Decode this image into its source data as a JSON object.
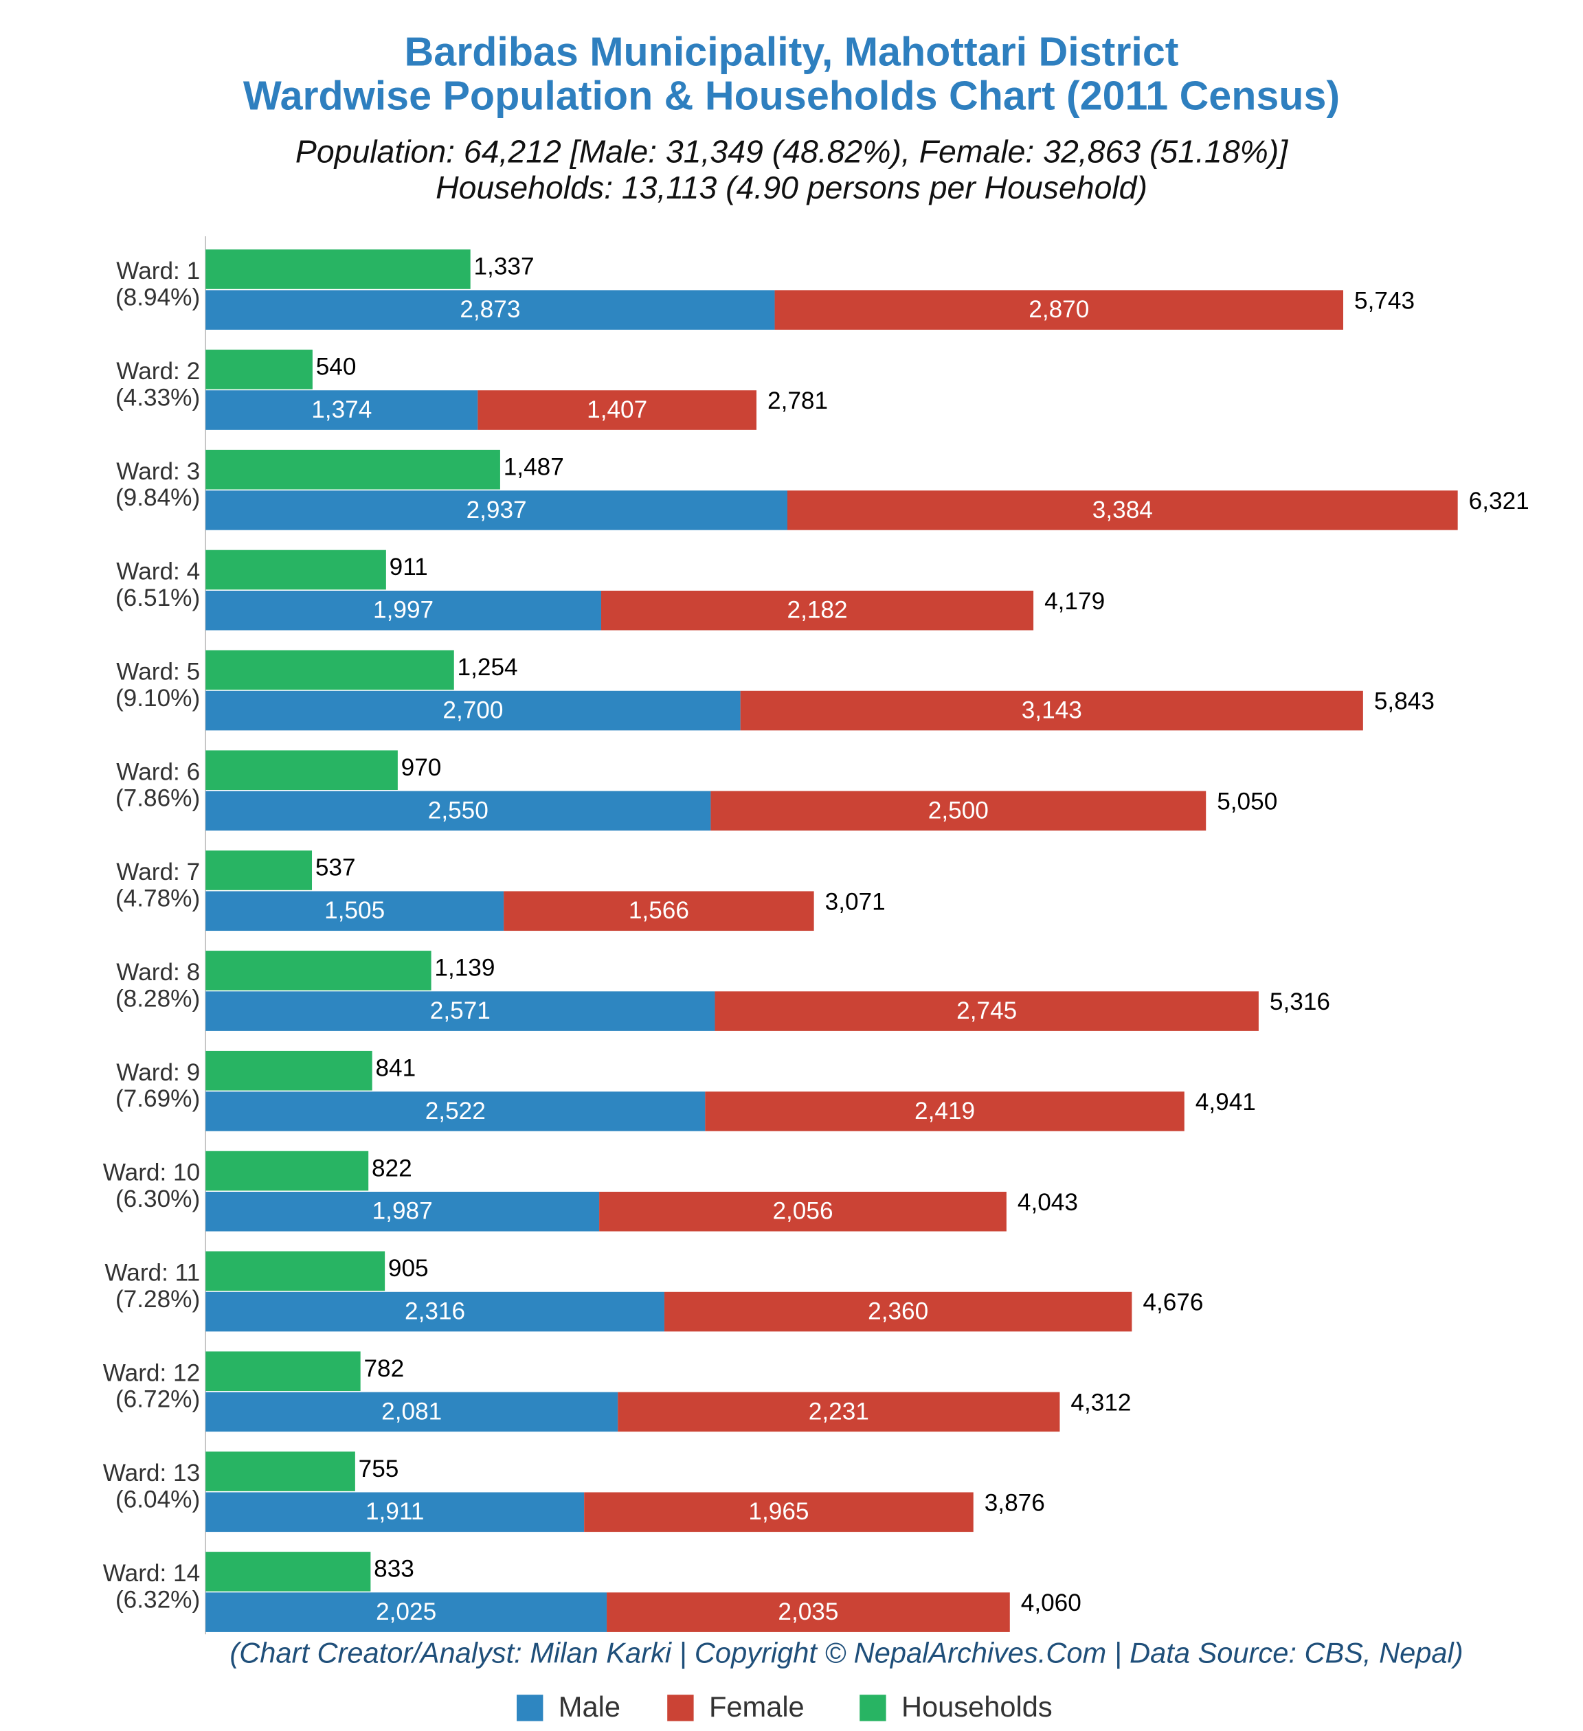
{
  "chart_data": {
    "type": "bar",
    "title": "Bardibas Municipality, Mahottari District",
    "title_line2": "Wardwise Population & Households Chart (2011 Census)",
    "subtitle": "Population: 64,212 [Male: 31,349 (48.82%), Female: 32,863 (51.18%)]",
    "subtitle_line2": "Households: 13,113 (4.90 persons per Household)",
    "footer": "(Chart Creator/Analyst: Milan Karki | Copyright © NepalArchives.Com | Data Source: CBS, Nepal)",
    "categories": [
      "Ward: 1",
      "Ward: 2",
      "Ward: 3",
      "Ward: 4",
      "Ward: 5",
      "Ward: 6",
      "Ward: 7",
      "Ward: 8",
      "Ward: 9",
      "Ward: 10",
      "Ward: 11",
      "Ward: 12",
      "Ward: 13",
      "Ward: 14"
    ],
    "category_shares": [
      "(8.94%)",
      "(4.33%)",
      "(9.84%)",
      "(6.51%)",
      "(9.10%)",
      "(7.86%)",
      "(4.78%)",
      "(8.28%)",
      "(7.69%)",
      "(6.30%)",
      "(7.28%)",
      "(6.72%)",
      "(6.04%)",
      "(6.32%)"
    ],
    "series": [
      {
        "name": "Male",
        "color": "#2e86c1",
        "values": [
          2873,
          1374,
          2937,
          1997,
          2700,
          2550,
          1505,
          2571,
          2522,
          1987,
          2316,
          2081,
          1911,
          2025
        ],
        "value_labels": [
          "2,873",
          "1,374",
          "2,937",
          "1,997",
          "2,700",
          "2,550",
          "1,505",
          "2,571",
          "2,522",
          "1,987",
          "2,316",
          "2,081",
          "1,911",
          "2,025"
        ]
      },
      {
        "name": "Female",
        "color": "#cb4335",
        "values": [
          2870,
          1407,
          3384,
          2182,
          3143,
          2500,
          1566,
          2745,
          2419,
          2056,
          2360,
          2231,
          1965,
          2035
        ],
        "value_labels": [
          "2,870",
          "1,407",
          "3,384",
          "2,182",
          "3,143",
          "2,500",
          "1,566",
          "2,745",
          "2,419",
          "2,056",
          "2,360",
          "2,231",
          "1,965",
          "2,035"
        ]
      },
      {
        "name": "Households",
        "color": "#28b463",
        "values": [
          1337,
          540,
          1487,
          911,
          1254,
          970,
          537,
          1139,
          841,
          822,
          905,
          782,
          755,
          833
        ],
        "value_labels": [
          "1,337",
          "540",
          "1,487",
          "911",
          "1,254",
          "970",
          "537",
          "1,139",
          "841",
          "822",
          "905",
          "782",
          "755",
          "833"
        ]
      }
    ],
    "totals": {
      "values": [
        5743,
        2781,
        6321,
        4179,
        5843,
        5050,
        3071,
        5316,
        4941,
        4043,
        4676,
        4312,
        3876,
        4060
      ],
      "value_labels": [
        "5,743",
        "2,781",
        "6,321",
        "4,179",
        "5,843",
        "5,050",
        "3,071",
        "5,316",
        "4,941",
        "4,043",
        "4,676",
        "4,312",
        "3,876",
        "4,060"
      ]
    }
  }
}
